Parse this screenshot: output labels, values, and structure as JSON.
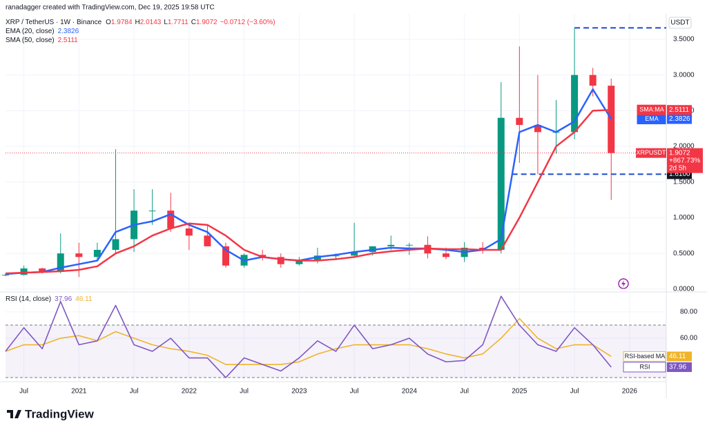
{
  "header": {
    "credit": "ranadagger created with TradingView.com, Dec 19, 2025 19:58 UTC",
    "logo": "TradingView"
  },
  "chart_data": [
    {
      "type": "candlestick",
      "symbol": "XRP / TetherUS · 1W · Binance",
      "ohlc": [
        {
          "label": "O",
          "value": 1.9784
        },
        {
          "label": "H",
          "value": 2.0143
        },
        {
          "label": "L",
          "value": 1.7711
        },
        {
          "label": "C",
          "value": 1.9072
        }
      ],
      "change": "−0.0712 (−3.60%)",
      "unit": "USDT",
      "x": [
        0,
        1,
        2,
        3,
        4,
        5,
        6,
        7,
        8,
        9,
        10,
        11,
        12,
        13,
        14,
        15,
        16,
        17,
        18,
        19,
        20,
        21,
        22,
        23,
        24,
        25,
        26,
        27,
        28,
        29,
        30,
        31,
        32,
        33
      ],
      "xlim": [
        0,
        36
      ],
      "xticks": [
        {
          "value": 1,
          "label": "Jul"
        },
        {
          "value": 4,
          "label": "2021"
        },
        {
          "value": 7,
          "label": "Jul"
        },
        {
          "value": 10,
          "label": "2022"
        },
        {
          "value": 13,
          "label": "Jul"
        },
        {
          "value": 16,
          "label": "2023"
        },
        {
          "value": 19,
          "label": "Jul"
        },
        {
          "value": 22,
          "label": "2024"
        },
        {
          "value": 25,
          "label": "Jul"
        },
        {
          "value": 28,
          "label": "2025"
        },
        {
          "value": 31,
          "label": "Jul"
        },
        {
          "value": 34,
          "label": "2026"
        }
      ],
      "ylim": [
        -0.03,
        3.78
      ],
      "yticks": [
        {
          "value": 0,
          "label": "0.0000"
        },
        {
          "value": 0.5,
          "label": "0.5000"
        },
        {
          "value": 1,
          "label": "1.0000"
        },
        {
          "value": 1.5,
          "label": "1.5000"
        },
        {
          "value": 2,
          "label": "2.0000"
        },
        {
          "value": 2.5,
          "label": "2.5000"
        },
        {
          "value": 3,
          "label": "3.0000"
        },
        {
          "value": 3.5,
          "label": "3.5000"
        }
      ],
      "grid": true,
      "candles": {
        "name": "XRPUSDT",
        "up_color": "#089981",
        "down_color": "#f23645",
        "open": [
          0.2,
          0.2,
          0.29,
          0.25,
          0.5,
          0.45,
          0.55,
          0.7,
          1.1,
          1.1,
          0.85,
          0.75,
          0.6,
          0.33,
          0.48,
          0.45,
          0.35,
          0.4,
          0.47,
          0.47,
          0.52,
          0.6,
          0.62,
          0.62,
          0.5,
          0.45,
          0.58,
          0.55,
          2.4,
          2.3,
          2.2,
          2.2,
          3.0,
          2.85
        ],
        "high": [
          0.22,
          0.33,
          0.3,
          0.78,
          0.65,
          0.65,
          1.96,
          1.4,
          1.4,
          1.35,
          0.9,
          0.9,
          0.65,
          0.5,
          0.55,
          0.5,
          0.45,
          0.58,
          0.5,
          0.93,
          0.6,
          0.75,
          0.65,
          0.74,
          0.58,
          0.66,
          0.66,
          2.9,
          3.4,
          3.0,
          2.65,
          3.66,
          3.1,
          2.95
        ],
        "low": [
          0.18,
          0.19,
          0.22,
          0.22,
          0.17,
          0.4,
          0.5,
          0.52,
          0.9,
          0.8,
          0.55,
          0.6,
          0.3,
          0.3,
          0.4,
          0.3,
          0.33,
          0.36,
          0.42,
          0.45,
          0.47,
          0.55,
          0.48,
          0.43,
          0.42,
          0.38,
          0.5,
          0.5,
          1.77,
          1.61,
          1.9,
          2.1,
          2.7,
          1.25
        ],
        "close": [
          0.2,
          0.29,
          0.25,
          0.5,
          0.45,
          0.55,
          0.7,
          1.1,
          1.1,
          0.85,
          0.75,
          0.6,
          0.33,
          0.48,
          0.45,
          0.35,
          0.4,
          0.47,
          0.47,
          0.52,
          0.6,
          0.62,
          0.62,
          0.5,
          0.45,
          0.58,
          0.55,
          2.4,
          2.3,
          2.2,
          2.2,
          3.0,
          2.85,
          1.9072
        ],
        "change_pct": "+867.73%",
        "countdown": "2d 5h"
      },
      "series": [
        {
          "name": "EMA (20, close)",
          "tag": "EMA",
          "color": "#2962ff",
          "values": [
            0.21,
            0.23,
            0.24,
            0.3,
            0.35,
            0.4,
            0.8,
            0.9,
            0.95,
            1.05,
            0.9,
            0.8,
            0.55,
            0.4,
            0.45,
            0.42,
            0.4,
            0.45,
            0.48,
            0.52,
            0.55,
            0.58,
            0.57,
            0.57,
            0.55,
            0.52,
            0.55,
            0.7,
            2.2,
            2.3,
            2.2,
            2.35,
            2.8,
            2.3826
          ]
        },
        {
          "name": "SMA (50, close)",
          "tag": "SMA:MA",
          "color": "#f23645",
          "values": [
            0.22,
            0.23,
            0.24,
            0.25,
            0.27,
            0.32,
            0.5,
            0.6,
            0.75,
            0.85,
            0.92,
            0.9,
            0.75,
            0.55,
            0.45,
            0.42,
            0.4,
            0.4,
            0.42,
            0.45,
            0.5,
            0.53,
            0.55,
            0.57,
            0.56,
            0.56,
            0.55,
            0.55,
            1.0,
            1.5,
            2.0,
            2.2,
            2.5,
            2.5111
          ]
        }
      ],
      "levels": [
        {
          "value": 3.66,
          "x_start": 31
        },
        {
          "value": 1.61,
          "x_start": 27.6,
          "label": "1.6100"
        }
      ]
    },
    {
      "type": "line",
      "title": "RSI (14, close)",
      "ylim": [
        27.4,
        94.2
      ],
      "yticks": [
        {
          "value": 80,
          "label": "80.00"
        },
        {
          "value": 60,
          "label": "60.00"
        }
      ],
      "band": [
        70,
        30
      ],
      "series": [
        {
          "name": "RSI",
          "color": "#7e57c2",
          "values": [
            50,
            68,
            52,
            88,
            55,
            58,
            85,
            55,
            50,
            60,
            45,
            45,
            30,
            45,
            40,
            35,
            45,
            58,
            50,
            70,
            52,
            55,
            60,
            48,
            42,
            43,
            55,
            92,
            70,
            55,
            50,
            68,
            55,
            37.96
          ]
        },
        {
          "name": "RSI-based MA",
          "color": "#f0b429",
          "values": [
            50,
            55,
            55,
            60,
            62,
            58,
            65,
            60,
            55,
            52,
            50,
            47,
            40,
            40,
            40,
            40,
            42,
            48,
            52,
            55,
            55,
            55,
            55,
            52,
            48,
            45,
            48,
            60,
            75,
            60,
            52,
            55,
            55,
            46.11
          ]
        }
      ]
    }
  ]
}
